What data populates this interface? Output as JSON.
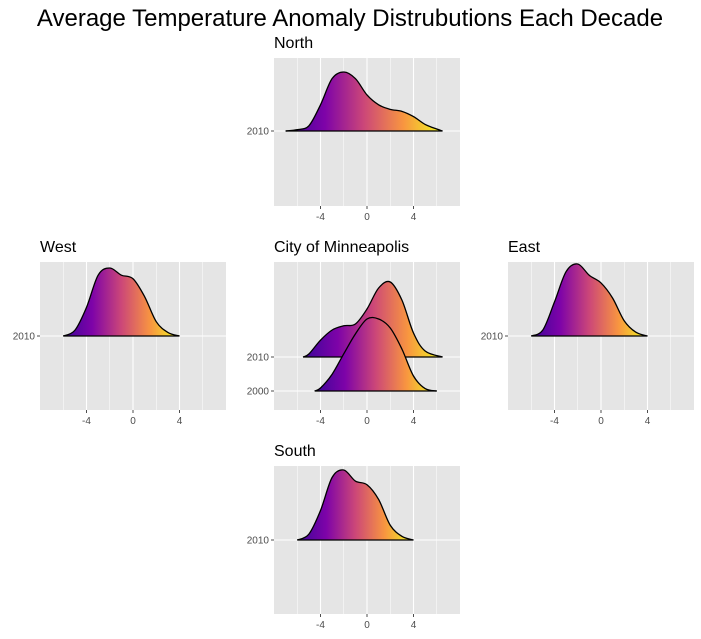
{
  "title": "Average Temperature Anomaly Distrubutions Each Decade",
  "colors": {
    "panel_background": "#e5e5e5",
    "grid": "#ffffff",
    "tick_text": "#4d4d4d",
    "outline": "#000000",
    "fill_gradient": [
      "#3b049a",
      "#7e03a8",
      "#cc4778",
      "#f89540",
      "#f0f921"
    ]
  },
  "chart_data": [
    {
      "type": "ridgeline",
      "title": "North",
      "xlim": [
        -8,
        8
      ],
      "x_ticks": [
        -4,
        0,
        4
      ],
      "x_tick_labels": [
        "-4",
        "0",
        "4"
      ],
      "y_categories": [
        "2010"
      ],
      "series": [
        {
          "name": "2010",
          "x": [
            -7,
            -6,
            -5,
            -4,
            -3,
            -2,
            -1,
            0,
            1,
            2,
            3,
            4,
            5,
            6,
            6.5
          ],
          "y": [
            0.0,
            0.02,
            0.08,
            0.4,
            0.8,
            0.9,
            0.8,
            0.55,
            0.4,
            0.33,
            0.3,
            0.22,
            0.1,
            0.03,
            0.0
          ]
        }
      ]
    },
    {
      "type": "ridgeline",
      "title": "West",
      "xlim": [
        -8,
        8
      ],
      "x_ticks": [
        -4,
        0,
        4
      ],
      "x_tick_labels": [
        "-4",
        "0",
        "4"
      ],
      "y_categories": [
        "2010"
      ],
      "series": [
        {
          "name": "2010",
          "x": [
            -6,
            -5,
            -4,
            -3,
            -2,
            -1,
            0,
            1,
            2,
            3,
            4
          ],
          "y": [
            0.0,
            0.08,
            0.4,
            0.85,
            0.95,
            0.85,
            0.8,
            0.55,
            0.2,
            0.05,
            0.0
          ]
        }
      ]
    },
    {
      "type": "ridgeline",
      "title": "City of Minneapolis",
      "xlim": [
        -8,
        8
      ],
      "x_ticks": [
        -4,
        0,
        4
      ],
      "x_tick_labels": [
        "-4",
        "0",
        "4"
      ],
      "y_categories": [
        "2000",
        "2010"
      ],
      "series": [
        {
          "name": "2010",
          "x": [
            -5.5,
            -5,
            -4,
            -3,
            -2,
            -1,
            0,
            1,
            2,
            3,
            4,
            5,
            6.5
          ],
          "y": [
            0.0,
            0.05,
            0.28,
            0.45,
            0.52,
            0.55,
            0.8,
            1.15,
            1.25,
            0.95,
            0.4,
            0.1,
            0.0
          ]
        },
        {
          "name": "2000",
          "x": [
            -4.5,
            -4,
            -3,
            -2,
            -1,
            0,
            1,
            2,
            3,
            4,
            5,
            6
          ],
          "y": [
            0.0,
            0.05,
            0.28,
            0.62,
            0.95,
            1.2,
            1.2,
            1.05,
            0.7,
            0.25,
            0.04,
            0.0
          ]
        }
      ]
    },
    {
      "type": "ridgeline",
      "title": "East",
      "xlim": [
        -8,
        8
      ],
      "x_ticks": [
        -4,
        0,
        4
      ],
      "x_tick_labels": [
        "-4",
        "0",
        "4"
      ],
      "y_categories": [
        "2010"
      ],
      "series": [
        {
          "name": "2010",
          "x": [
            -6,
            -5,
            -4,
            -3,
            -2,
            -1,
            0,
            1,
            2,
            3,
            4
          ],
          "y": [
            0.0,
            0.08,
            0.45,
            0.85,
            0.95,
            0.8,
            0.7,
            0.5,
            0.2,
            0.05,
            0.0
          ]
        }
      ]
    },
    {
      "type": "ridgeline",
      "title": "South",
      "xlim": [
        -8,
        8
      ],
      "x_ticks": [
        -4,
        0,
        4
      ],
      "x_tick_labels": [
        "-4",
        "0",
        "4"
      ],
      "y_categories": [
        "2010"
      ],
      "series": [
        {
          "name": "2010",
          "x": [
            -6,
            -5,
            -4,
            -3,
            -2,
            -1,
            0,
            1,
            2,
            3,
            4
          ],
          "y": [
            0.0,
            0.08,
            0.4,
            0.85,
            0.95,
            0.8,
            0.75,
            0.55,
            0.2,
            0.05,
            0.0
          ]
        }
      ]
    }
  ]
}
